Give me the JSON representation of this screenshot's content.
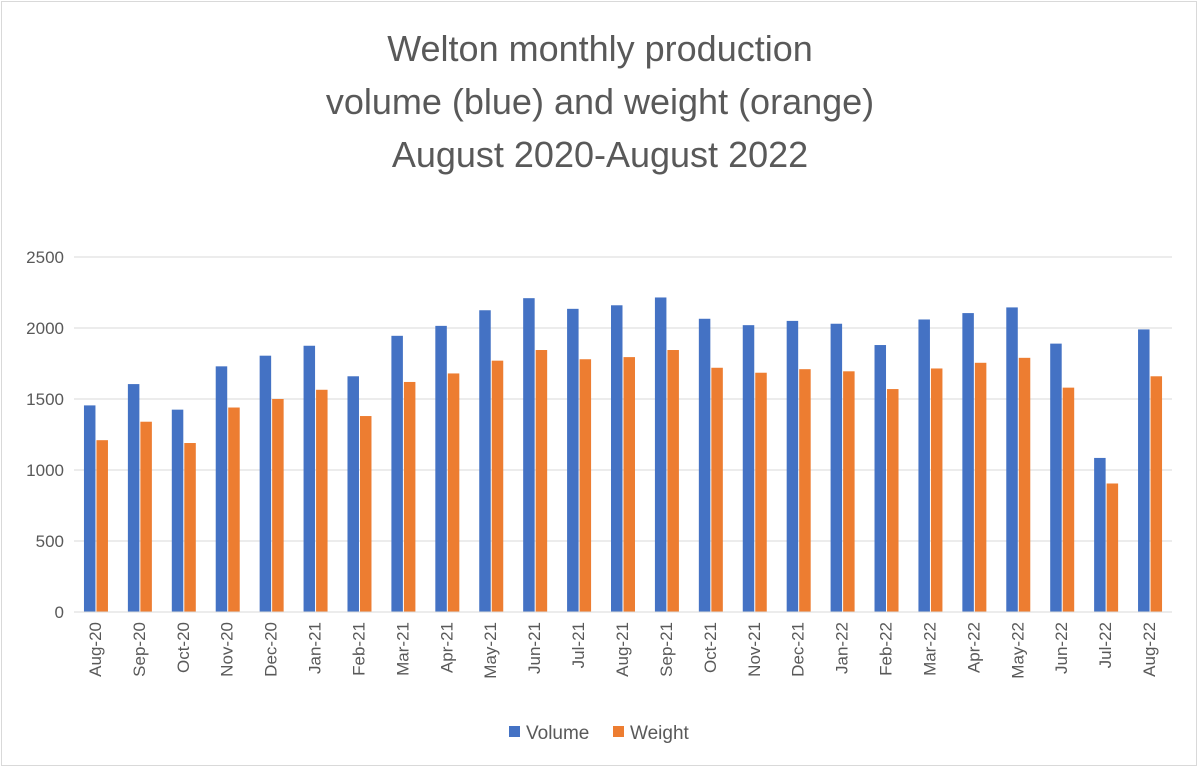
{
  "chart_data": {
    "type": "bar",
    "title_lines": [
      "Welton monthly production",
      "volume (blue) and weight (orange)",
      "August 2020-August 2022"
    ],
    "categories": [
      "Aug-20",
      "Sep-20",
      "Oct-20",
      "Nov-20",
      "Dec-20",
      "Jan-21",
      "Feb-21",
      "Mar-21",
      "Apr-21",
      "May-21",
      "Jun-21",
      "Jul-21",
      "Aug-21",
      "Sep-21",
      "Oct-21",
      "Nov-21",
      "Dec-21",
      "Jan-22",
      "Feb-22",
      "Mar-22",
      "Apr-22",
      "May-22",
      "Jun-22",
      "Jul-22",
      "Aug-22"
    ],
    "series": [
      {
        "name": "Volume",
        "color": "#4472c4",
        "values": [
          1455,
          1605,
          1425,
          1730,
          1805,
          1875,
          1660,
          1945,
          2015,
          2125,
          2210,
          2135,
          2160,
          2215,
          2065,
          2020,
          2050,
          2030,
          1880,
          2060,
          2105,
          2145,
          1890,
          1085,
          1990
        ]
      },
      {
        "name": "Weight",
        "color": "#ed7d31",
        "values": [
          1210,
          1340,
          1190,
          1440,
          1500,
          1565,
          1380,
          1620,
          1680,
          1770,
          1845,
          1780,
          1795,
          1845,
          1720,
          1685,
          1710,
          1695,
          1570,
          1715,
          1755,
          1790,
          1580,
          905,
          1660
        ]
      }
    ],
    "ylim": [
      0,
      2500
    ],
    "yticks": [
      "0",
      "500",
      "1000",
      "1500",
      "2000",
      "2500"
    ],
    "grid": true,
    "legend_position": "bottom"
  }
}
